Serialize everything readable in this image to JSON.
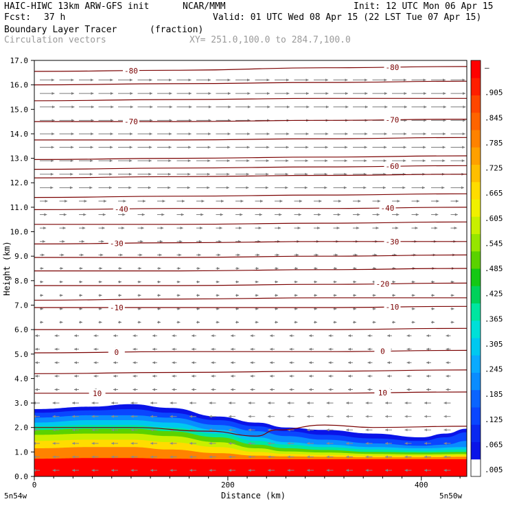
{
  "header": {
    "title_left": "HAIC-HIWC 13km ARW-GFS init",
    "org": "NCAR/MMM",
    "init": "Init: 12 UTC Mon 06 Apr 15",
    "fcst_label": "Fcst:",
    "fcst_value": "37 h",
    "valid": "Valid: 01 UTC Wed 08 Apr 15 (22 LST Tue 07 Apr 15)",
    "field_name": "Boundary Layer Tracer",
    "field_units": "(fraction)",
    "vector_label": "Circulation vectors",
    "xy_range": "XY= 251.0,100.0 to 284.7,100.0"
  },
  "chart_data": {
    "type": "heatmap",
    "xlabel": "Distance (km)",
    "ylabel": "Height (km)",
    "xlim": [
      0,
      447
    ],
    "ylim": [
      0,
      17
    ],
    "x_ticks": [
      0,
      200,
      400
    ],
    "y_ticks": [
      0.0,
      1.0,
      2.0,
      3.0,
      4.0,
      5.0,
      6.0,
      7.0,
      8.0,
      9.0,
      10.0,
      11.0,
      12.0,
      13.0,
      14.0,
      15.0,
      16.0,
      17.0
    ],
    "y_tick_labels": [
      "0.0",
      "1.0",
      "2.0",
      "3.0",
      "4.0",
      "5.0",
      "6.0",
      "7.0",
      "8.0",
      "9.0",
      "10.0",
      "11.0",
      "12.0",
      "13.0",
      "14.0",
      "15.0",
      "16.0",
      "17.0"
    ],
    "x_end_labels": [
      "5n54w",
      "5n50w"
    ],
    "colorbar": {
      "labels": [
        ".005",
        ".065",
        ".125",
        ".185",
        ".245",
        ".305",
        ".365",
        ".425",
        ".485",
        ".545",
        ".605",
        ".665",
        ".725",
        ".785",
        ".845",
        ".905",
        "–"
      ],
      "colors": [
        "#ffffff",
        "#0a14e8",
        "#0a28f0",
        "#0a46ff",
        "#0a64ff",
        "#0a8cff",
        "#0aaaff",
        "#00c8f0",
        "#00e0d8",
        "#00e6a0",
        "#00d25a",
        "#14c814",
        "#5ad200",
        "#96e600",
        "#c8f000",
        "#f0f000",
        "#ffdc00",
        "#ffbe00",
        "#ffa000",
        "#ff8200",
        "#ff6400",
        "#ff4600",
        "#ff1e00",
        "#ff0000"
      ]
    },
    "tracer_layers": [
      {
        "level": 0.005,
        "color": "#0a14e8",
        "top_km": [
          [
            0,
            2.75
          ],
          [
            60,
            2.85
          ],
          [
            100,
            2.95
          ],
          [
            140,
            2.8
          ],
          [
            190,
            2.45
          ],
          [
            230,
            2.2
          ],
          [
            260,
            2.0
          ],
          [
            300,
            1.9
          ],
          [
            350,
            1.75
          ],
          [
            400,
            1.6
          ],
          [
            425,
            1.75
          ],
          [
            447,
            1.95
          ]
        ]
      },
      {
        "level": 0.065,
        "color": "#0a46ff",
        "top_km": [
          [
            0,
            2.6
          ],
          [
            60,
            2.7
          ],
          [
            100,
            2.75
          ],
          [
            140,
            2.6
          ],
          [
            190,
            2.3
          ],
          [
            230,
            2.05
          ],
          [
            260,
            1.85
          ],
          [
            300,
            1.7
          ],
          [
            350,
            1.55
          ],
          [
            400,
            1.45
          ],
          [
            425,
            1.6
          ],
          [
            447,
            1.8
          ]
        ]
      },
      {
        "level": 0.125,
        "color": "#0a8cff",
        "top_km": [
          [
            0,
            2.4
          ],
          [
            60,
            2.5
          ],
          [
            100,
            2.5
          ],
          [
            140,
            2.4
          ],
          [
            190,
            2.1
          ],
          [
            230,
            1.85
          ],
          [
            260,
            1.65
          ],
          [
            300,
            1.5
          ],
          [
            350,
            1.35
          ],
          [
            400,
            1.25
          ],
          [
            425,
            1.3
          ],
          [
            447,
            1.45
          ]
        ]
      },
      {
        "level": 0.245,
        "color": "#00c8f0",
        "top_km": [
          [
            0,
            2.2
          ],
          [
            60,
            2.3
          ],
          [
            100,
            2.3
          ],
          [
            140,
            2.2
          ],
          [
            190,
            1.9
          ],
          [
            230,
            1.6
          ],
          [
            260,
            1.4
          ],
          [
            300,
            1.3
          ],
          [
            350,
            1.2
          ],
          [
            400,
            1.15
          ],
          [
            447,
            1.2
          ]
        ]
      },
      {
        "level": 0.365,
        "color": "#00e6a0",
        "top_km": [
          [
            0,
            2.05
          ],
          [
            60,
            2.1
          ],
          [
            100,
            2.1
          ],
          [
            140,
            2.0
          ],
          [
            190,
            1.75
          ],
          [
            230,
            1.45
          ],
          [
            260,
            1.3
          ],
          [
            300,
            1.2
          ],
          [
            350,
            1.1
          ],
          [
            400,
            1.05
          ],
          [
            447,
            1.1
          ]
        ]
      },
      {
        "level": 0.485,
        "color": "#5ad200",
        "top_km": [
          [
            0,
            1.9
          ],
          [
            60,
            1.95
          ],
          [
            100,
            1.95
          ],
          [
            140,
            1.85
          ],
          [
            190,
            1.6
          ],
          [
            230,
            1.3
          ],
          [
            260,
            1.15
          ],
          [
            300,
            1.08
          ],
          [
            350,
            1.0
          ],
          [
            400,
            0.98
          ],
          [
            447,
            1.0
          ]
        ]
      },
      {
        "level": 0.605,
        "color": "#c8f000",
        "top_km": [
          [
            0,
            1.7
          ],
          [
            60,
            1.75
          ],
          [
            100,
            1.75
          ],
          [
            140,
            1.65
          ],
          [
            190,
            1.4
          ],
          [
            230,
            1.15
          ],
          [
            260,
            1.02
          ],
          [
            300,
            0.98
          ],
          [
            350,
            0.92
          ],
          [
            400,
            0.9
          ],
          [
            447,
            0.92
          ]
        ]
      },
      {
        "level": 0.725,
        "color": "#ffdc00",
        "top_km": [
          [
            0,
            1.45
          ],
          [
            60,
            1.5
          ],
          [
            100,
            1.5
          ],
          [
            140,
            1.4
          ],
          [
            190,
            1.2
          ],
          [
            230,
            1.0
          ],
          [
            260,
            0.92
          ],
          [
            300,
            0.88
          ],
          [
            350,
            0.85
          ],
          [
            400,
            0.85
          ],
          [
            447,
            0.86
          ]
        ]
      },
      {
        "level": 0.845,
        "color": "#ff8200",
        "top_km": [
          [
            0,
            1.15
          ],
          [
            60,
            1.2
          ],
          [
            100,
            1.2
          ],
          [
            140,
            1.1
          ],
          [
            190,
            0.95
          ],
          [
            230,
            0.85
          ],
          [
            260,
            0.82
          ],
          [
            300,
            0.8
          ],
          [
            350,
            0.78
          ],
          [
            400,
            0.78
          ],
          [
            447,
            0.8
          ]
        ]
      },
      {
        "level": 0.965,
        "color": "#ff0000",
        "top_km": [
          [
            0,
            0.72
          ],
          [
            60,
            0.75
          ],
          [
            100,
            0.75
          ],
          [
            140,
            0.72
          ],
          [
            190,
            0.7
          ],
          [
            230,
            0.7
          ],
          [
            260,
            0.7
          ],
          [
            300,
            0.7
          ],
          [
            350,
            0.7
          ],
          [
            400,
            0.7
          ],
          [
            447,
            0.7
          ]
        ]
      }
    ],
    "temperature_contours": [
      {
        "label": "-80",
        "km": [
          [
            0,
            16.55
          ],
          [
            150,
            16.6
          ],
          [
            300,
            16.7
          ],
          [
            447,
            16.75
          ]
        ],
        "label_x": [
          100,
          370
        ]
      },
      {
        "label": "",
        "km": [
          [
            0,
            16.0
          ],
          [
            150,
            16.05
          ],
          [
            300,
            16.1
          ],
          [
            447,
            16.15
          ]
        ]
      },
      {
        "label": "",
        "km": [
          [
            0,
            15.35
          ],
          [
            150,
            15.4
          ],
          [
            300,
            15.45
          ],
          [
            447,
            15.45
          ]
        ]
      },
      {
        "label": "-70",
        "km": [
          [
            0,
            14.5
          ],
          [
            150,
            14.5
          ],
          [
            300,
            14.55
          ],
          [
            447,
            14.6
          ]
        ],
        "label_x": [
          100,
          370
        ]
      },
      {
        "label": "",
        "km": [
          [
            0,
            13.75
          ],
          [
            150,
            13.75
          ],
          [
            300,
            13.8
          ],
          [
            447,
            13.85
          ]
        ]
      },
      {
        "label": "",
        "km": [
          [
            0,
            12.95
          ],
          [
            150,
            13.0
          ],
          [
            300,
            13.05
          ],
          [
            447,
            13.1
          ]
        ]
      },
      {
        "label": "-60",
        "km": [
          [
            0,
            12.55
          ],
          [
            150,
            12.6
          ],
          [
            300,
            12.65
          ],
          [
            447,
            12.7
          ]
        ],
        "label_x": [
          370
        ]
      },
      {
        "label": "",
        "km": [
          [
            0,
            12.2
          ],
          [
            150,
            12.25
          ],
          [
            300,
            12.3
          ],
          [
            447,
            12.35
          ]
        ]
      },
      {
        "label": "",
        "km": [
          [
            0,
            11.4
          ],
          [
            150,
            11.45
          ],
          [
            300,
            11.5
          ],
          [
            447,
            11.55
          ]
        ]
      },
      {
        "label": "-40",
        "km": [
          [
            0,
            10.9
          ],
          [
            150,
            10.95
          ],
          [
            300,
            10.95
          ],
          [
            447,
            11.0
          ]
        ],
        "label_x": [
          90,
          365
        ]
      },
      {
        "label": "",
        "km": [
          [
            0,
            10.3
          ],
          [
            150,
            10.3
          ],
          [
            300,
            10.35
          ],
          [
            447,
            10.4
          ]
        ]
      },
      {
        "label": "-30",
        "km": [
          [
            0,
            9.5
          ],
          [
            150,
            9.55
          ],
          [
            300,
            9.6
          ],
          [
            447,
            9.6
          ]
        ],
        "label_x": [
          85,
          370
        ]
      },
      {
        "label": "",
        "km": [
          [
            0,
            8.95
          ],
          [
            150,
            8.95
          ],
          [
            300,
            9.0
          ],
          [
            447,
            9.05
          ]
        ]
      },
      {
        "label": "",
        "km": [
          [
            0,
            8.4
          ],
          [
            150,
            8.4
          ],
          [
            300,
            8.45
          ],
          [
            447,
            8.5
          ]
        ]
      },
      {
        "label": "-20",
        "km": [
          [
            0,
            7.8
          ],
          [
            150,
            7.8
          ],
          [
            300,
            7.85
          ],
          [
            447,
            7.9
          ]
        ],
        "label_x": [
          360
        ]
      },
      {
        "label": "",
        "km": [
          [
            0,
            7.2
          ],
          [
            150,
            7.25
          ],
          [
            300,
            7.3
          ],
          [
            447,
            7.3
          ]
        ]
      },
      {
        "label": "-10",
        "km": [
          [
            0,
            6.9
          ],
          [
            150,
            6.9
          ],
          [
            300,
            6.9
          ],
          [
            447,
            6.95
          ]
        ],
        "label_x": [
          85,
          370
        ]
      },
      {
        "label": "",
        "km": [
          [
            0,
            6.0
          ],
          [
            150,
            6.0
          ],
          [
            300,
            6.0
          ],
          [
            447,
            6.05
          ]
        ]
      },
      {
        "label": "0",
        "km": [
          [
            0,
            5.05
          ],
          [
            150,
            5.1
          ],
          [
            300,
            5.1
          ],
          [
            447,
            5.15
          ]
        ],
        "label_x": [
          85,
          360
        ]
      },
      {
        "label": "",
        "km": [
          [
            0,
            4.2
          ],
          [
            150,
            4.25
          ],
          [
            300,
            4.3
          ],
          [
            447,
            4.35
          ]
        ]
      },
      {
        "label": "10",
        "km": [
          [
            0,
            3.4
          ],
          [
            150,
            3.4
          ],
          [
            300,
            3.4
          ],
          [
            447,
            3.45
          ]
        ],
        "label_x": [
          65,
          360
        ]
      },
      {
        "label": "",
        "km": [
          [
            0,
            2.0
          ],
          [
            100,
            2.0
          ],
          [
            180,
            1.85
          ],
          [
            230,
            1.65
          ],
          [
            250,
            1.9
          ],
          [
            300,
            2.1
          ],
          [
            350,
            2.0
          ],
          [
            447,
            2.05
          ]
        ]
      }
    ]
  }
}
